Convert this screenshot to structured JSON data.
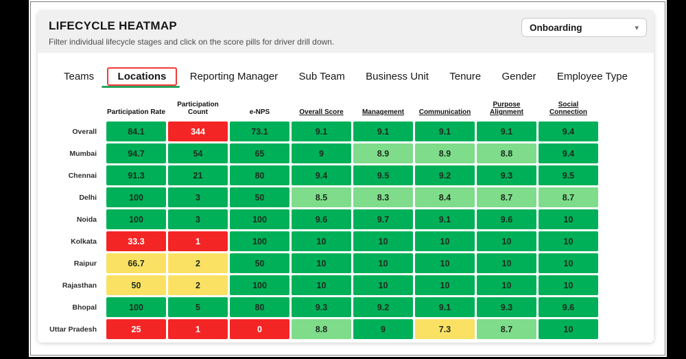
{
  "header": {
    "title": "LIFECYCLE HEATMAP",
    "subtitle": "Filter individual lifecycle stages and click on the score pills for driver drill down."
  },
  "stage_filter": {
    "selected": "Onboarding",
    "chevron_icon": "▾"
  },
  "tabs": [
    {
      "label": "Teams"
    },
    {
      "label": "Locations",
      "active": true,
      "highlighted": true
    },
    {
      "label": "Reporting Manager"
    },
    {
      "label": "Sub Team"
    },
    {
      "label": "Business Unit"
    },
    {
      "label": "Tenure"
    },
    {
      "label": "Gender"
    },
    {
      "label": "Employee Type"
    }
  ],
  "accents": {
    "active_tab_underline": "#27a35e",
    "highlight_box": "#ef3b36"
  },
  "heatmap": {
    "columns": [
      {
        "label": "Participation Rate",
        "underlined": false
      },
      {
        "label": "Participation Count",
        "underlined": false
      },
      {
        "label": "e-NPS",
        "underlined": false
      },
      {
        "label": "Overall Score",
        "underlined": true
      },
      {
        "label": "Management",
        "underlined": true
      },
      {
        "label": "Communication",
        "underlined": true
      },
      {
        "label": "Purpose Alignment",
        "underlined": true
      },
      {
        "label": "Social Connection",
        "underlined": true
      }
    ],
    "colors": {
      "g": "#00b058",
      "lg": "#7edc8b",
      "r": "#f42525",
      "y": "#fae163"
    },
    "text_colors": {
      "default": "#1e2b1e",
      "on_red": "#ffffff"
    },
    "rows": [
      {
        "label": "Overall",
        "cells": [
          [
            "84.1",
            "g"
          ],
          [
            "344",
            "r"
          ],
          [
            "73.1",
            "g"
          ],
          [
            "9.1",
            "g"
          ],
          [
            "9.1",
            "g"
          ],
          [
            "9.1",
            "g"
          ],
          [
            "9.1",
            "g"
          ],
          [
            "9.4",
            "g"
          ]
        ]
      },
      {
        "label": "Mumbai",
        "cells": [
          [
            "94.7",
            "g"
          ],
          [
            "54",
            "g"
          ],
          [
            "65",
            "g"
          ],
          [
            "9",
            "g"
          ],
          [
            "8.9",
            "lg"
          ],
          [
            "8.9",
            "lg"
          ],
          [
            "8.8",
            "lg"
          ],
          [
            "9.4",
            "g"
          ]
        ]
      },
      {
        "label": "Chennai",
        "cells": [
          [
            "91.3",
            "g"
          ],
          [
            "21",
            "g"
          ],
          [
            "80",
            "g"
          ],
          [
            "9.4",
            "g"
          ],
          [
            "9.5",
            "g"
          ],
          [
            "9.2",
            "g"
          ],
          [
            "9.3",
            "g"
          ],
          [
            "9.5",
            "g"
          ]
        ]
      },
      {
        "label": "Delhi",
        "cells": [
          [
            "100",
            "g"
          ],
          [
            "3",
            "g"
          ],
          [
            "50",
            "g"
          ],
          [
            "8.5",
            "lg"
          ],
          [
            "8.3",
            "lg"
          ],
          [
            "8.4",
            "lg"
          ],
          [
            "8.7",
            "lg"
          ],
          [
            "8.7",
            "lg"
          ]
        ]
      },
      {
        "label": "Noida",
        "cells": [
          [
            "100",
            "g"
          ],
          [
            "3",
            "g"
          ],
          [
            "100",
            "g"
          ],
          [
            "9.6",
            "g"
          ],
          [
            "9.7",
            "g"
          ],
          [
            "9.1",
            "g"
          ],
          [
            "9.6",
            "g"
          ],
          [
            "10",
            "g"
          ]
        ]
      },
      {
        "label": "Kolkata",
        "cells": [
          [
            "33.3",
            "r"
          ],
          [
            "1",
            "r"
          ],
          [
            "100",
            "g"
          ],
          [
            "10",
            "g"
          ],
          [
            "10",
            "g"
          ],
          [
            "10",
            "g"
          ],
          [
            "10",
            "g"
          ],
          [
            "10",
            "g"
          ]
        ]
      },
      {
        "label": "Raipur",
        "cells": [
          [
            "66.7",
            "y"
          ],
          [
            "2",
            "y"
          ],
          [
            "50",
            "g"
          ],
          [
            "10",
            "g"
          ],
          [
            "10",
            "g"
          ],
          [
            "10",
            "g"
          ],
          [
            "10",
            "g"
          ],
          [
            "10",
            "g"
          ]
        ]
      },
      {
        "label": "Rajasthan",
        "cells": [
          [
            "50",
            "y"
          ],
          [
            "2",
            "y"
          ],
          [
            "100",
            "g"
          ],
          [
            "10",
            "g"
          ],
          [
            "10",
            "g"
          ],
          [
            "10",
            "g"
          ],
          [
            "10",
            "g"
          ],
          [
            "10",
            "g"
          ]
        ]
      },
      {
        "label": "Bhopal",
        "cells": [
          [
            "100",
            "g"
          ],
          [
            "5",
            "g"
          ],
          [
            "80",
            "g"
          ],
          [
            "9.3",
            "g"
          ],
          [
            "9.2",
            "g"
          ],
          [
            "9.1",
            "g"
          ],
          [
            "9.3",
            "g"
          ],
          [
            "9.6",
            "g"
          ]
        ]
      },
      {
        "label": "Uttar Pradesh",
        "cells": [
          [
            "25",
            "r"
          ],
          [
            "1",
            "r"
          ],
          [
            "0",
            "r"
          ],
          [
            "8.8",
            "lg"
          ],
          [
            "9",
            "g"
          ],
          [
            "7.3",
            "y"
          ],
          [
            "8.7",
            "lg"
          ],
          [
            "10",
            "g"
          ]
        ]
      }
    ]
  }
}
